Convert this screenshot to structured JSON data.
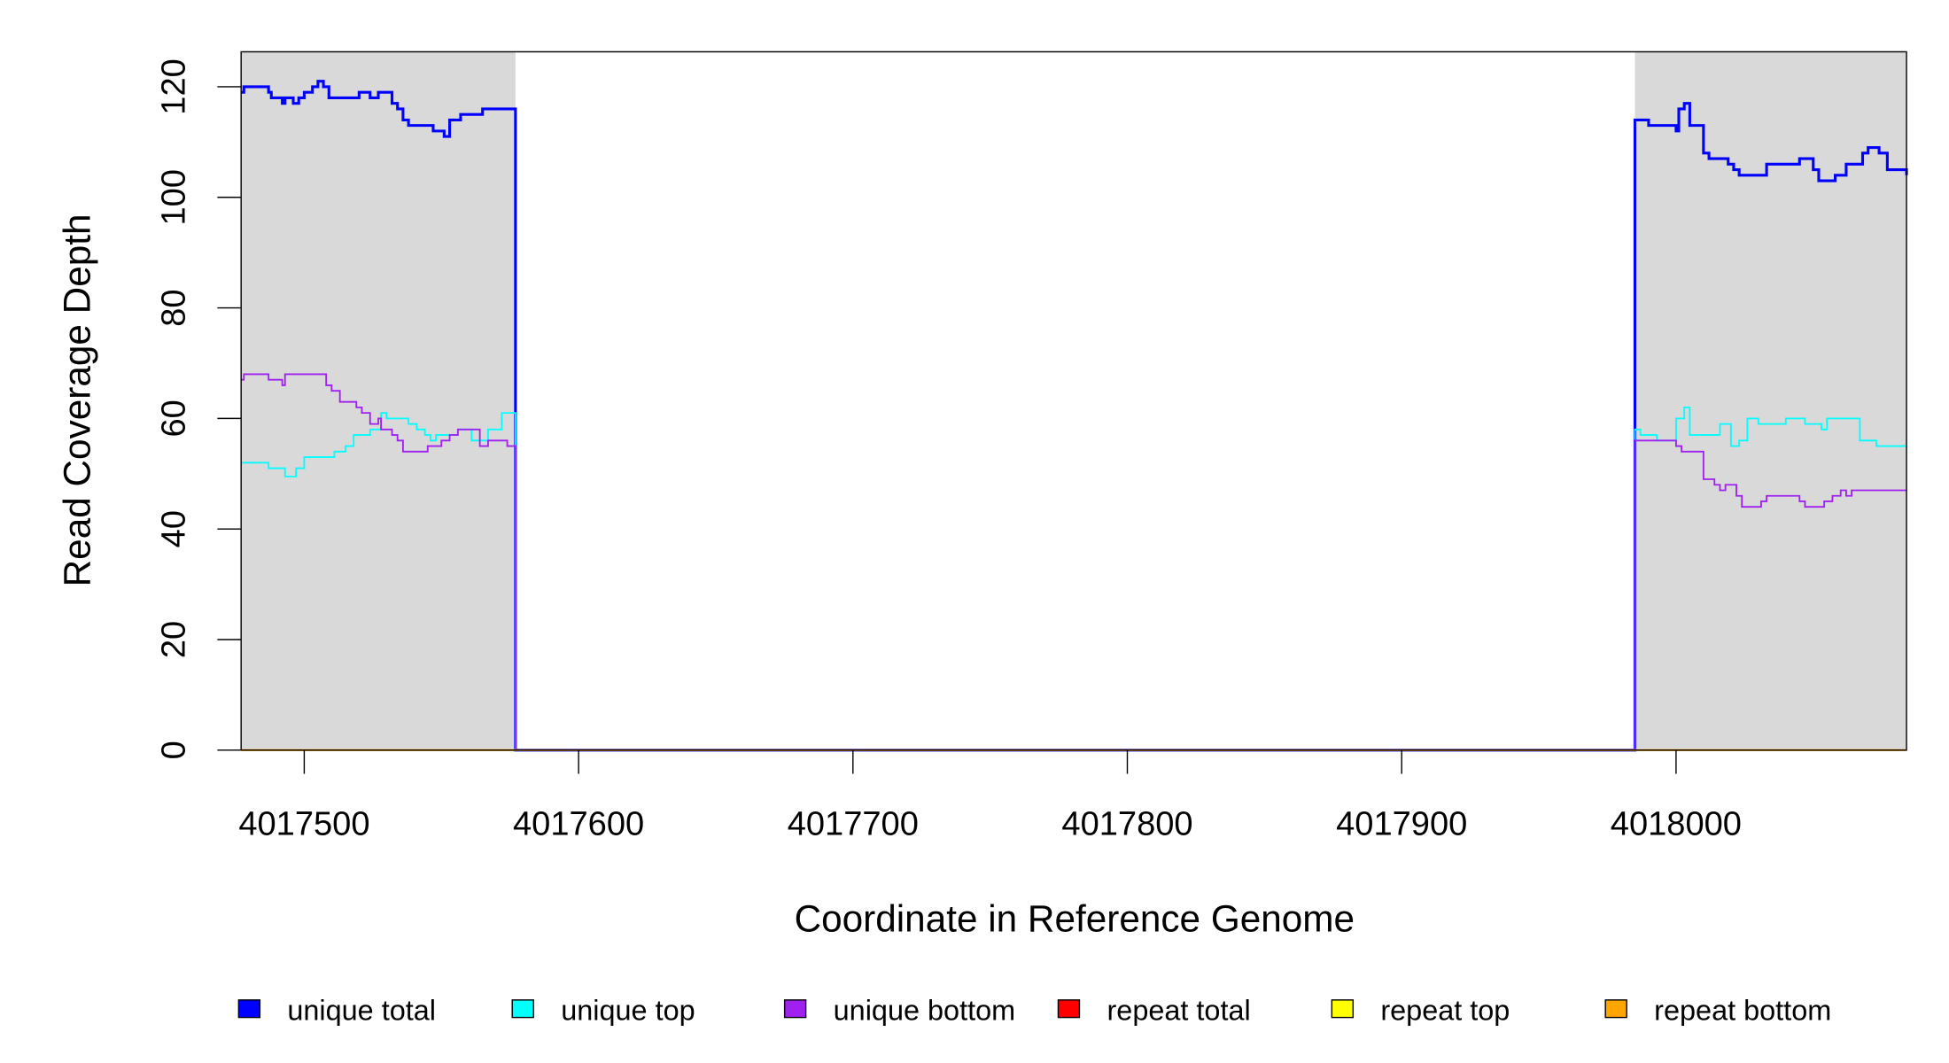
{
  "chart_data": {
    "type": "line",
    "step": true,
    "title": "",
    "xlabel": "Coordinate in Reference Genome",
    "ylabel": "Read Coverage Depth",
    "xlim": [
      4017477,
      4018084
    ],
    "ylim": [
      0,
      126
    ],
    "xticks": [
      4017500,
      4017600,
      4017700,
      4017800,
      4017900,
      4018000
    ],
    "xtick_labels": [
      "4017500",
      "4017600",
      "4017700",
      "4017800",
      "4017900",
      "4018000"
    ],
    "yticks": [
      0,
      20,
      40,
      60,
      80,
      100,
      120
    ],
    "ytick_labels": [
      "0",
      "20",
      "40",
      "60",
      "80",
      "100",
      "120"
    ],
    "grid": false,
    "legend_position": "bottom",
    "shaded_regions": [
      [
        4017477,
        4017577
      ],
      [
        4017985,
        4018084
      ]
    ],
    "shade_color": "#d9d9d9",
    "series": [
      {
        "name": "unique total",
        "color": "#0000ff",
        "points": [
          [
            4017477,
            119
          ],
          [
            4017478,
            120
          ],
          [
            4017487,
            119
          ],
          [
            4017488,
            118
          ],
          [
            4017492,
            117
          ],
          [
            4017493,
            118
          ],
          [
            4017496,
            117
          ],
          [
            4017498,
            118
          ],
          [
            4017500,
            119
          ],
          [
            4017503,
            120
          ],
          [
            4017505,
            121
          ],
          [
            4017507,
            120
          ],
          [
            4017509,
            118
          ],
          [
            4017520,
            119
          ],
          [
            4017524,
            118
          ],
          [
            4017527,
            119
          ],
          [
            4017532,
            117
          ],
          [
            4017534,
            116
          ],
          [
            4017536,
            114
          ],
          [
            4017538,
            113
          ],
          [
            4017547,
            112
          ],
          [
            4017551,
            111
          ],
          [
            4017553,
            114
          ],
          [
            4017557,
            115
          ],
          [
            4017565,
            116
          ],
          [
            4017577,
            0
          ],
          [
            4017985,
            114
          ],
          [
            4017990,
            113
          ],
          [
            4018000,
            112
          ],
          [
            4018001,
            116
          ],
          [
            4018003,
            117
          ],
          [
            4018005,
            113
          ],
          [
            4018010,
            108
          ],
          [
            4018012,
            107
          ],
          [
            4018019,
            106
          ],
          [
            4018021,
            105
          ],
          [
            4018023,
            104
          ],
          [
            4018033,
            106
          ],
          [
            4018045,
            107
          ],
          [
            4018050,
            105
          ],
          [
            4018052,
            103
          ],
          [
            4018058,
            104
          ],
          [
            4018062,
            106
          ],
          [
            4018068,
            108
          ],
          [
            4018070,
            109
          ],
          [
            4018074,
            108
          ],
          [
            4018077,
            105
          ],
          [
            4018084,
            104
          ]
        ]
      },
      {
        "name": "unique top",
        "color": "#00ffff",
        "points": [
          [
            4017477,
            52
          ],
          [
            4017487,
            51
          ],
          [
            4017493,
            49.5
          ],
          [
            4017497,
            51
          ],
          [
            4017500,
            53
          ],
          [
            4017511,
            54
          ],
          [
            4017515,
            55
          ],
          [
            4017518,
            57
          ],
          [
            4017524,
            58
          ],
          [
            4017528,
            61
          ],
          [
            4017530,
            60
          ],
          [
            4017538,
            59
          ],
          [
            4017541,
            58
          ],
          [
            4017544,
            57
          ],
          [
            4017546,
            56
          ],
          [
            4017548,
            57
          ],
          [
            4017556,
            58
          ],
          [
            4017561,
            56
          ],
          [
            4017567,
            58
          ],
          [
            4017572,
            61
          ],
          [
            4017577,
            0
          ],
          [
            4017985,
            58
          ],
          [
            4017987,
            57
          ],
          [
            4017993,
            56
          ],
          [
            4018000,
            60
          ],
          [
            4018003,
            62
          ],
          [
            4018005,
            57
          ],
          [
            4018016,
            59
          ],
          [
            4018020,
            55
          ],
          [
            4018023,
            56
          ],
          [
            4018026,
            60
          ],
          [
            4018030,
            59
          ],
          [
            4018040,
            60
          ],
          [
            4018047,
            59
          ],
          [
            4018053,
            58
          ],
          [
            4018055,
            60
          ],
          [
            4018067,
            56
          ],
          [
            4018073,
            55
          ],
          [
            4018084,
            55
          ]
        ]
      },
      {
        "name": "unique bottom",
        "color": "#a020f0",
        "points": [
          [
            4017477,
            67
          ],
          [
            4017478,
            68
          ],
          [
            4017487,
            67
          ],
          [
            4017492,
            66
          ],
          [
            4017493,
            68
          ],
          [
            4017508,
            66
          ],
          [
            4017510,
            65
          ],
          [
            4017513,
            63
          ],
          [
            4017519,
            62
          ],
          [
            4017521,
            61
          ],
          [
            4017524,
            59
          ],
          [
            4017527,
            60
          ],
          [
            4017528,
            58
          ],
          [
            4017532,
            57
          ],
          [
            4017534,
            56
          ],
          [
            4017536,
            54
          ],
          [
            4017545,
            55
          ],
          [
            4017550,
            56
          ],
          [
            4017553,
            57
          ],
          [
            4017556,
            58
          ],
          [
            4017564,
            55
          ],
          [
            4017567,
            56
          ],
          [
            4017574,
            55
          ],
          [
            4017577,
            0
          ],
          [
            4017985,
            56
          ],
          [
            4018000,
            55
          ],
          [
            4018002,
            54
          ],
          [
            4018010,
            49
          ],
          [
            4018014,
            48
          ],
          [
            4018016,
            47
          ],
          [
            4018018,
            48
          ],
          [
            4018022,
            46
          ],
          [
            4018024,
            44
          ],
          [
            4018031,
            45
          ],
          [
            4018033,
            46
          ],
          [
            4018045,
            45
          ],
          [
            4018047,
            44
          ],
          [
            4018054,
            45
          ],
          [
            4018057,
            46
          ],
          [
            4018060,
            47
          ],
          [
            4018062,
            46
          ],
          [
            4018064,
            47
          ],
          [
            4018084,
            47
          ]
        ]
      },
      {
        "name": "repeat total",
        "color": "#ff0000",
        "points": [
          [
            4017477,
            0
          ],
          [
            4018084,
            0
          ]
        ]
      },
      {
        "name": "repeat top",
        "color": "#ffff00",
        "points": [
          [
            4017477,
            0
          ],
          [
            4018084,
            0
          ]
        ]
      },
      {
        "name": "repeat bottom",
        "color": "#ffa500",
        "points": [
          [
            4017477,
            0
          ],
          [
            4018084,
            0
          ]
        ]
      }
    ]
  }
}
